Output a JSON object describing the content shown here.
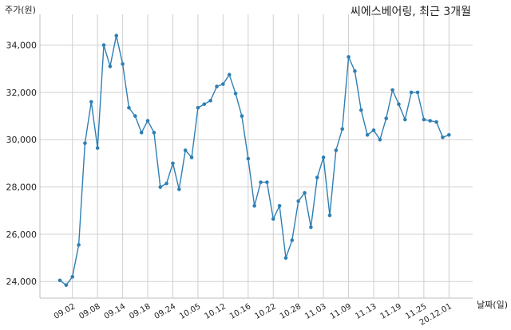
{
  "chart_data": {
    "type": "line",
    "title": "씨에스베어링, 최근 3개월",
    "ylabel": "주가(원)",
    "xlabel": "날짜(일)",
    "ylim": [
      23300,
      35300
    ],
    "yticks": [
      24000,
      26000,
      28000,
      30000,
      32000,
      34000
    ],
    "ytick_labels": [
      "24,000",
      "26,000",
      "28,000",
      "30,000",
      "32,000",
      "34,000"
    ],
    "xtick_labels": [
      "09.02",
      "09.08",
      "09.14",
      "09.18",
      "09.24",
      "10.05",
      "10.12",
      "10.16",
      "10.22",
      "10.28",
      "11.03",
      "11.09",
      "11.13",
      "11.19",
      "11.25",
      "20.12.01"
    ],
    "xtick_index": [
      2,
      6,
      10,
      14,
      18,
      22,
      26,
      30,
      34,
      38,
      42,
      46,
      50,
      54,
      58,
      62
    ],
    "grid": true,
    "color": "#2f7fb3",
    "series": [
      {
        "values": [
          24050,
          23850,
          24200,
          25550,
          29850,
          31600,
          29650,
          34000,
          33100,
          34400,
          33200,
          31350,
          31000,
          30300,
          30800,
          30300,
          28000,
          28150,
          29000,
          27900,
          29550,
          29250,
          31350,
          31500,
          31650,
          32250,
          32350,
          32750,
          31950,
          31000,
          29200,
          27200,
          28200,
          28200,
          26650,
          27200,
          25000,
          25750,
          27400,
          27750,
          26300,
          28400,
          29250,
          26800,
          29550,
          30450,
          33500,
          32900,
          31250,
          30200,
          30400,
          30000,
          30900,
          32100,
          31500,
          30850,
          32000,
          32000,
          30850,
          30800,
          30750,
          30100,
          30200
        ]
      }
    ]
  }
}
